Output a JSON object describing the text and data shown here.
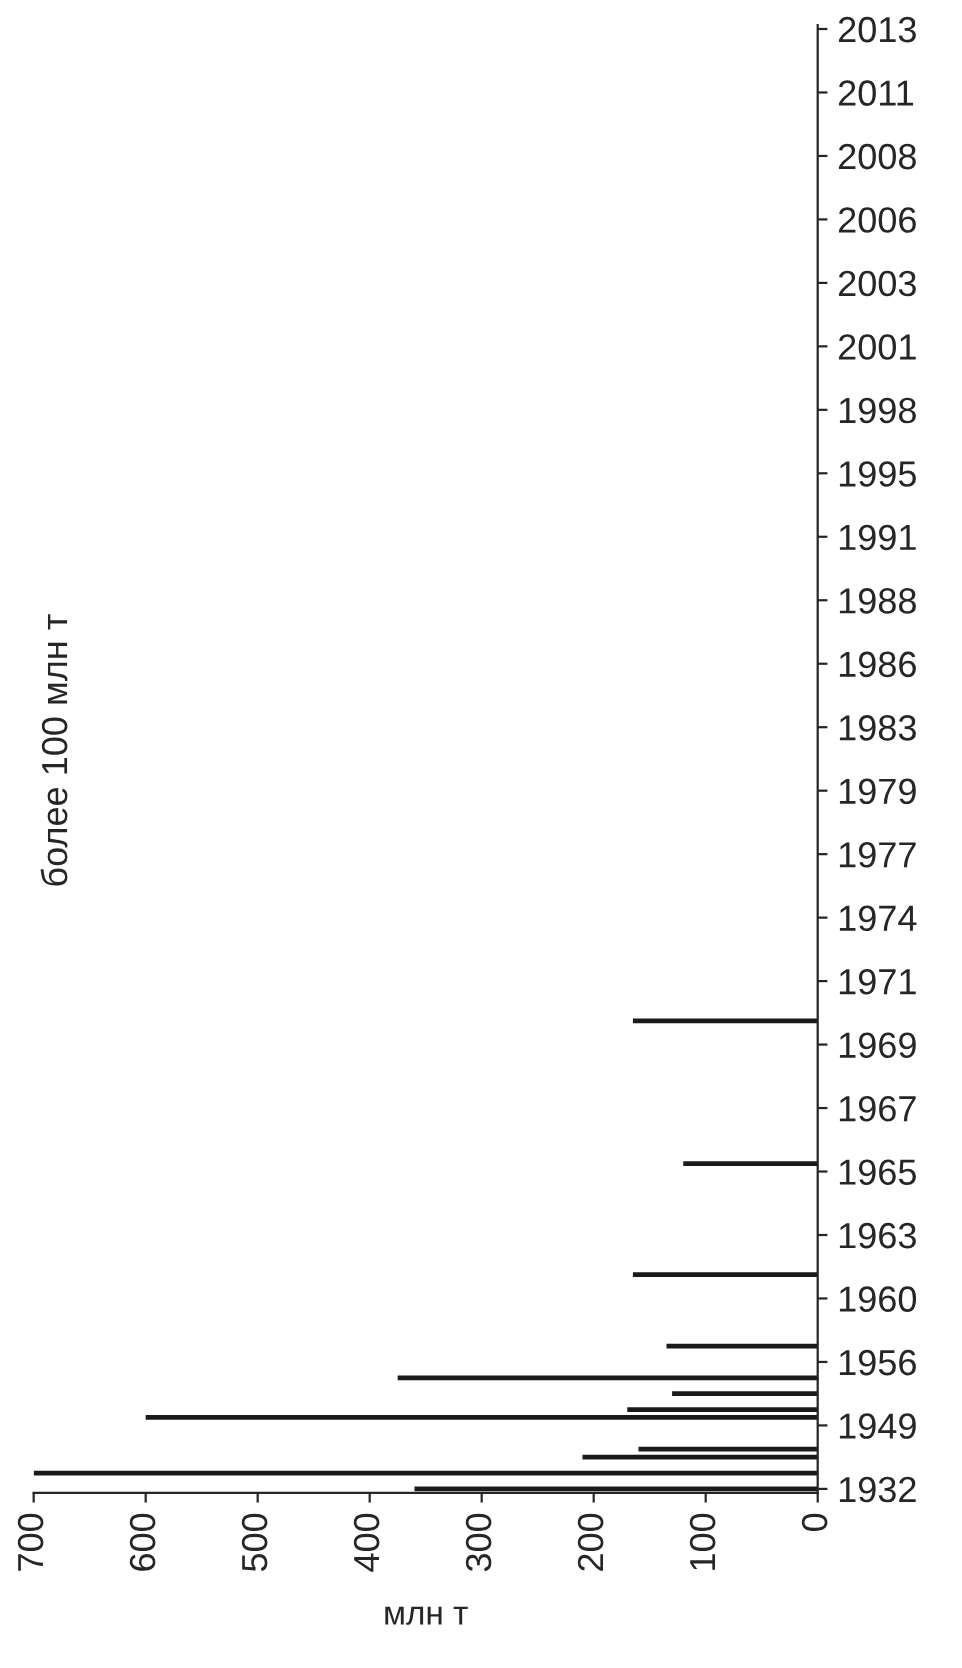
{
  "chart_data": {
    "type": "bar",
    "orientation": "horizontal",
    "title": "более 100 млн т",
    "xlabel": "млн т",
    "categories": [
      "2013",
      null,
      null,
      null,
      null,
      null,
      null,
      null,
      "2011",
      null,
      null,
      null,
      null,
      null,
      null,
      null,
      "2008",
      null,
      null,
      null,
      null,
      null,
      null,
      null,
      "2006",
      null,
      null,
      null,
      null,
      null,
      null,
      null,
      "2003",
      null,
      null,
      null,
      null,
      null,
      null,
      null,
      "2001",
      null,
      null,
      null,
      null,
      null,
      null,
      null,
      "1998",
      null,
      null,
      null,
      null,
      null,
      null,
      null,
      "1995",
      null,
      null,
      null,
      null,
      null,
      null,
      null,
      "1991",
      null,
      null,
      null,
      null,
      null,
      null,
      null,
      "1988",
      null,
      null,
      null,
      null,
      null,
      null,
      null,
      "1986",
      null,
      null,
      null,
      null,
      null,
      null,
      null,
      "1983",
      null,
      null,
      null,
      null,
      null,
      null,
      null,
      "1979",
      null,
      null,
      null,
      null,
      null,
      null,
      null,
      "1977",
      null,
      null,
      null,
      null,
      null,
      null,
      null,
      "1974",
      null,
      null,
      null,
      null,
      null,
      null,
      null,
      "1971",
      null,
      null,
      null,
      null,
      null,
      null,
      null,
      "1969",
      null,
      null,
      null,
      null,
      null,
      null,
      null,
      "1967",
      null,
      null,
      null,
      null,
      null,
      null,
      null,
      "1965",
      null,
      null,
      null,
      null,
      null,
      null,
      null,
      "1963",
      null,
      null,
      null,
      null,
      null,
      null,
      null,
      "1960",
      null,
      null,
      null,
      null,
      null,
      null,
      null,
      "1956",
      null,
      null,
      null,
      null,
      null,
      null,
      null,
      "1949",
      null,
      null,
      null,
      null,
      null,
      null,
      null,
      "1932"
    ],
    "values": [
      null,
      null,
      null,
      null,
      null,
      null,
      null,
      null,
      null,
      null,
      null,
      null,
      null,
      null,
      null,
      null,
      null,
      null,
      null,
      null,
      null,
      null,
      null,
      null,
      null,
      null,
      null,
      null,
      null,
      null,
      null,
      null,
      null,
      null,
      null,
      null,
      null,
      null,
      null,
      null,
      null,
      null,
      null,
      null,
      null,
      null,
      null,
      null,
      null,
      null,
      null,
      null,
      null,
      null,
      null,
      null,
      null,
      null,
      null,
      null,
      null,
      null,
      null,
      null,
      null,
      null,
      null,
      null,
      null,
      null,
      null,
      null,
      null,
      null,
      null,
      null,
      null,
      null,
      null,
      null,
      null,
      null,
      null,
      null,
      null,
      null,
      null,
      null,
      null,
      null,
      null,
      null,
      null,
      null,
      null,
      null,
      null,
      null,
      null,
      null,
      null,
      null,
      null,
      null,
      null,
      null,
      null,
      null,
      null,
      null,
      null,
      null,
      null,
      null,
      null,
      null,
      null,
      null,
      null,
      null,
      null,
      null,
      null,
      null,
      null,
      165,
      null,
      null,
      null,
      null,
      null,
      null,
      null,
      null,
      null,
      null,
      null,
      null,
      null,
      null,
      null,
      null,
      null,
      120,
      null,
      null,
      null,
      null,
      null,
      null,
      null,
      null,
      null,
      null,
      null,
      null,
      null,
      165,
      null,
      null,
      null,
      null,
      null,
      null,
      null,
      null,
      135,
      null,
      null,
      null,
      375,
      null,
      130,
      null,
      170,
      600,
      null,
      null,
      null,
      160,
      210,
      null,
      700,
      null,
      360
    ],
    "color": "#1a1a1a",
    "xlim": [
      700,
      0
    ],
    "xticks": [
      700,
      600,
      500,
      400,
      300,
      200,
      100,
      0
    ],
    "grid": false,
    "legend": false
  }
}
